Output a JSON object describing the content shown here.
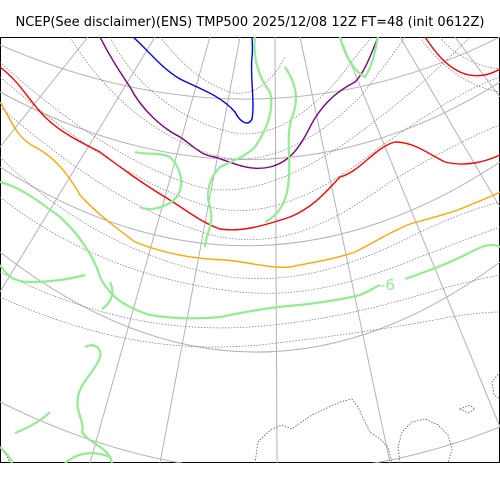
{
  "title": "NCEP(See disclaimer)(ENS) TMP500 2025/12/08 12Z FT=48 (init 0612Z)",
  "contour_labels": [
    {
      "text": "-6",
      "color": "#90ee90"
    }
  ],
  "colors": {
    "isotherm_blue": "#0000ff",
    "isotherm_purple": "#800080",
    "isotherm_red": "#ff0000",
    "isotherm_orange": "#ffa500",
    "isotherm_green": "#90ee90",
    "graticule": "#b3b3b3",
    "coastline": "#555555"
  }
}
